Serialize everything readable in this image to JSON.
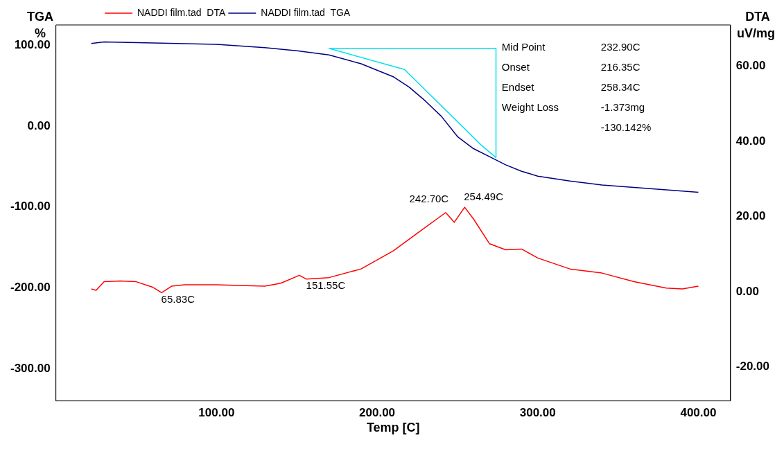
{
  "chart_data": {
    "type": "line",
    "xlabel": "Temp [C]",
    "ylabel": "TGA\n%",
    "y2label": "DTA\nuV/mg",
    "xlim": [
      0,
      420
    ],
    "xticks": [
      {
        "value": 100,
        "label": "100.00"
      },
      {
        "value": 200,
        "label": "200.00"
      },
      {
        "value": 300,
        "label": "300.00"
      },
      {
        "value": 400,
        "label": "400.00"
      }
    ],
    "ylim": [
      -340,
      125
    ],
    "yticks": [
      {
        "value": -300,
        "label": "-300.00"
      },
      {
        "value": -200,
        "label": "-200.00"
      },
      {
        "value": -100,
        "label": "-100.00"
      },
      {
        "value": 0,
        "label": "0.00"
      },
      {
        "value": 100,
        "label": "100.00"
      }
    ],
    "y2lim": [
      -29,
      71
    ],
    "y2ticks": [
      {
        "value": -20,
        "label": "-20.00"
      },
      {
        "value": 0,
        "label": "0.00"
      },
      {
        "value": 20,
        "label": "20.00"
      },
      {
        "value": 40,
        "label": "40.00"
      },
      {
        "value": 60,
        "label": "60.00"
      }
    ],
    "grid": false,
    "legend": "top left",
    "marker": "none",
    "line_style": "solid",
    "series": [
      {
        "name": "NADDI film.tad  DTA",
        "color": "#ff0000",
        "axis": "y2",
        "x": [
          22,
          25,
          30,
          40,
          50,
          60,
          65.83,
          72,
          80,
          100,
          130,
          140,
          151.55,
          156,
          170,
          190,
          210,
          225,
          242.7,
          248,
          254.49,
          260,
          270,
          280,
          290,
          300,
          320,
          340,
          360,
          380,
          390,
          400
        ],
        "values": [
          0.8,
          0.4,
          2.7,
          2.9,
          2.7,
          1.3,
          -0.2,
          1.5,
          1.9,
          1.9,
          1.5,
          2.3,
          4.4,
          3.4,
          3.8,
          6.1,
          10.9,
          15.6,
          21.1,
          18.5,
          22.5,
          19.4,
          12.8,
          11.2,
          11.4,
          9,
          6.1,
          5,
          2.7,
          1,
          0.8,
          1.5
        ]
      },
      {
        "name": "NADDI film.tad  TGA",
        "color": "#000080",
        "axis": "y",
        "x": [
          22,
          30,
          100,
          130,
          150,
          170,
          190,
          210,
          220,
          230,
          240,
          250,
          260,
          270,
          280,
          290,
          300,
          320,
          340,
          360,
          380,
          400
        ],
        "values": [
          102,
          104,
          101,
          97,
          93,
          88,
          77,
          61,
          48,
          31,
          12,
          -13,
          -28,
          -38,
          -48,
          -56,
          -62,
          -68,
          -73,
          -76,
          -79,
          -82
        ]
      },
      {
        "color": "#00e0f0",
        "axis": "y",
        "x": [
          170,
          217,
          265,
          274
        ],
        "values": [
          96,
          70,
          -24,
          -39
        ]
      },
      {
        "color": "#00e0f0",
        "axis": "y",
        "x": [
          170,
          274
        ],
        "values": [
          96,
          96
        ]
      },
      {
        "color": "#00e0f0",
        "axis": "y",
        "x": [
          274,
          274
        ],
        "values": [
          96,
          -39
        ]
      }
    ],
    "annotations": [
      "Mid Point",
      "232.90C",
      "Onset",
      "216.35C",
      "Endset",
      "258.34C",
      "Weight Loss",
      "-1.373mg",
      "-130.142%",
      "65.83C",
      "151.55C",
      "242.70C",
      "254.49C"
    ]
  }
}
